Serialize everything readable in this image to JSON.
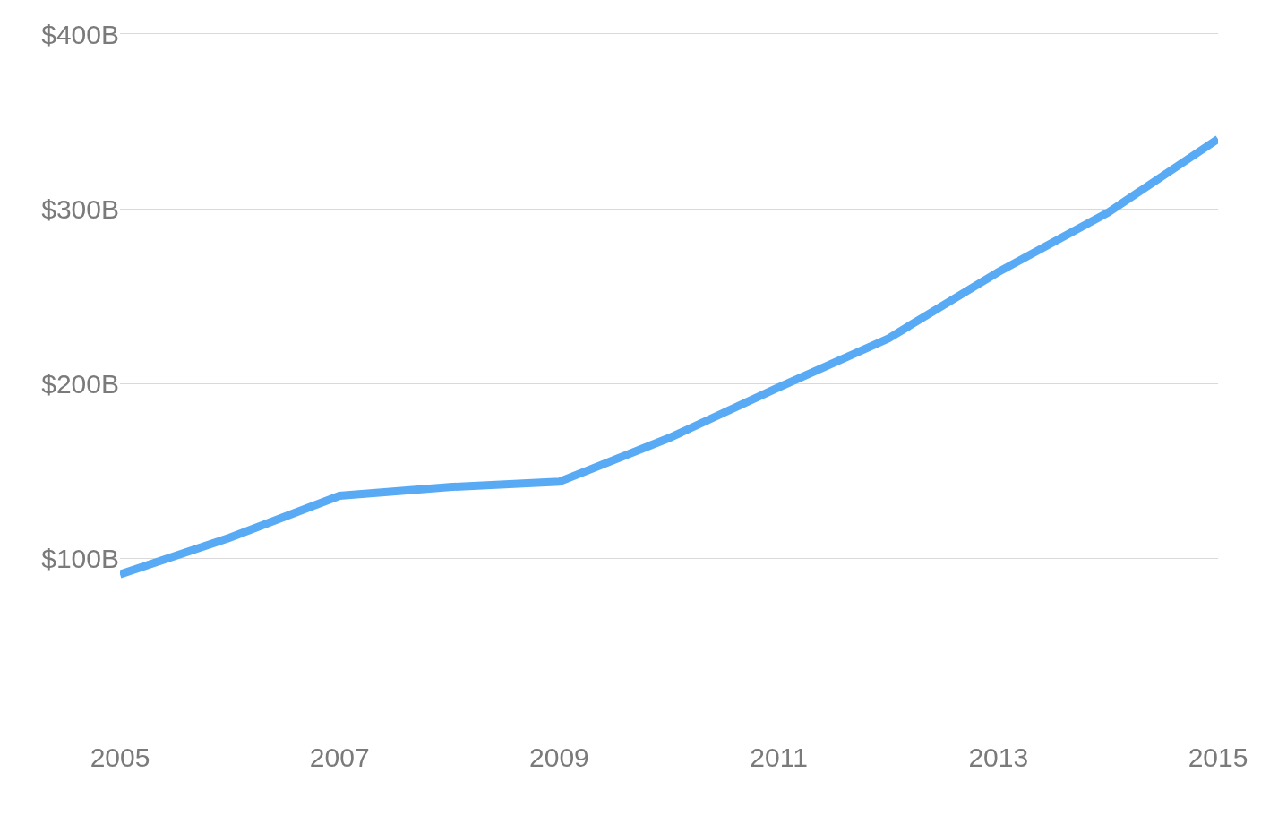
{
  "chart_data": {
    "type": "line",
    "x": [
      2005,
      2006,
      2007,
      2008,
      2009,
      2010,
      2011,
      2012,
      2013,
      2014,
      2015
    ],
    "series": [
      {
        "color": "#58aaf5",
        "values": [
          91,
          112,
          136,
          141,
          144,
          169,
          198,
          226,
          264,
          298,
          340
        ]
      }
    ],
    "xlim": [
      2005,
      2015
    ],
    "xticks": [
      2005,
      2007,
      2009,
      2011,
      2013,
      2015
    ],
    "ylim": [
      0,
      400
    ],
    "yticks": [
      {
        "value": 100,
        "label": "$100B"
      },
      {
        "value": 200,
        "label": "$200B"
      },
      {
        "value": 300,
        "label": "$300B"
      },
      {
        "value": 400,
        "label": "$400B"
      }
    ],
    "grid": "y",
    "marker": "none",
    "line_style": "solid"
  }
}
